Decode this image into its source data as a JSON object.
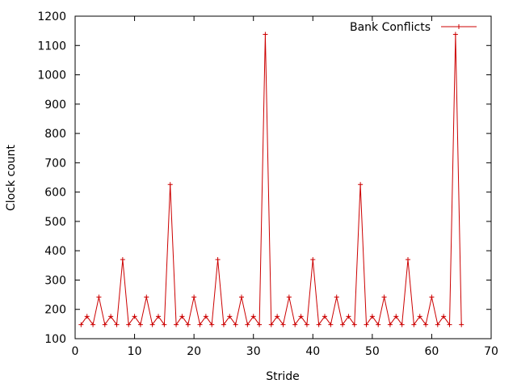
{
  "chart_data": {
    "type": "line",
    "title": "",
    "xlabel": "Stride",
    "ylabel": "Clock count",
    "xlim": [
      0,
      70
    ],
    "ylim": [
      100,
      1200
    ],
    "xticks": [
      0,
      10,
      20,
      30,
      40,
      50,
      60,
      70
    ],
    "yticks": [
      100,
      200,
      300,
      400,
      500,
      600,
      700,
      800,
      900,
      1000,
      1100,
      1200
    ],
    "grid": false,
    "legend_position": "top-right",
    "series": [
      {
        "name": "Bank Conflicts",
        "color": "#cc0000",
        "marker": "plus",
        "x": [
          1,
          2,
          3,
          4,
          5,
          6,
          7,
          8,
          9,
          10,
          11,
          12,
          13,
          14,
          15,
          16,
          17,
          18,
          19,
          20,
          21,
          22,
          23,
          24,
          25,
          26,
          27,
          28,
          29,
          30,
          31,
          32,
          33,
          34,
          35,
          36,
          37,
          38,
          39,
          40,
          41,
          42,
          43,
          44,
          45,
          46,
          47,
          48,
          49,
          50,
          51,
          52,
          53,
          54,
          55,
          56,
          57,
          58,
          59,
          60,
          61,
          62,
          63,
          64,
          65
        ],
        "y": [
          148,
          176,
          148,
          242,
          148,
          176,
          148,
          370,
          148,
          176,
          148,
          242,
          148,
          176,
          148,
          626,
          148,
          176,
          148,
          242,
          148,
          176,
          148,
          370,
          148,
          176,
          148,
          242,
          148,
          176,
          148,
          1138,
          148,
          176,
          148,
          242,
          148,
          176,
          148,
          370,
          148,
          176,
          148,
          242,
          148,
          176,
          148,
          626,
          148,
          176,
          148,
          242,
          148,
          176,
          148,
          370,
          148,
          176,
          148,
          242,
          148,
          176,
          148,
          1138,
          148
        ]
      }
    ]
  }
}
